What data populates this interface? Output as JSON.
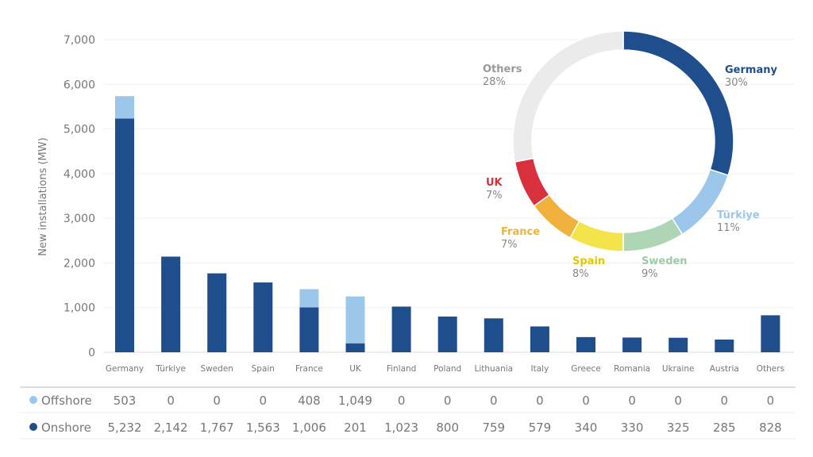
{
  "chart_data": [
    {
      "type": "bar",
      "stacked": true,
      "ylabel": "New installations (MW)",
      "ylim": [
        0,
        7000
      ],
      "yticks": [
        "0",
        "1,000",
        "2,000",
        "3,000",
        "4,000",
        "5,000",
        "6,000",
        "7,000"
      ],
      "grid": true,
      "categories": [
        "Germany",
        "Türkiye",
        "Sweden",
        "Spain",
        "France",
        "UK",
        "Finland",
        "Poland",
        "Lithuania",
        "Italy",
        "Greece",
        "Romania",
        "Ukraine",
        "Austria",
        "Others"
      ],
      "series": [
        {
          "name": "Onshore",
          "color": "#1f4e8c",
          "values": [
            5232,
            2142,
            1767,
            1563,
            1006,
            201,
            1023,
            800,
            759,
            579,
            340,
            330,
            325,
            285,
            828
          ],
          "labels": [
            "5,232",
            "2,142",
            "1,767",
            "1,563",
            "1,006",
            "201",
            "1,023",
            "800",
            "759",
            "579",
            "340",
            "330",
            "325",
            "285",
            "828"
          ]
        },
        {
          "name": "Offshore",
          "color": "#9cc7ea",
          "values": [
            503,
            0,
            0,
            0,
            408,
            1049,
            0,
            0,
            0,
            0,
            0,
            0,
            0,
            0,
            0
          ],
          "labels": [
            "503",
            "0",
            "0",
            "0",
            "408",
            "1,049",
            "0",
            "0",
            "0",
            "0",
            "0",
            "0",
            "0",
            "0",
            "0"
          ]
        }
      ]
    },
    {
      "type": "pie",
      "donut": true,
      "slices": [
        {
          "label": "Germany",
          "value": 30,
          "pct": "30%",
          "color": "#1f4e8c"
        },
        {
          "label": "Türkiye",
          "value": 11,
          "pct": "11%",
          "color": "#9cc7ea"
        },
        {
          "label": "Sweden",
          "value": 9,
          "pct": "9%",
          "color": "#aed6b4"
        },
        {
          "label": "Spain",
          "value": 8,
          "pct": "8%",
          "color": "#f2e44a"
        },
        {
          "label": "France",
          "value": 7,
          "pct": "7%",
          "color": "#f0b23c"
        },
        {
          "label": "UK",
          "value": 7,
          "pct": "7%",
          "color": "#d8303d"
        },
        {
          "label": "Others",
          "value": 28,
          "pct": "28%",
          "color": "#ebebeb"
        }
      ]
    }
  ]
}
